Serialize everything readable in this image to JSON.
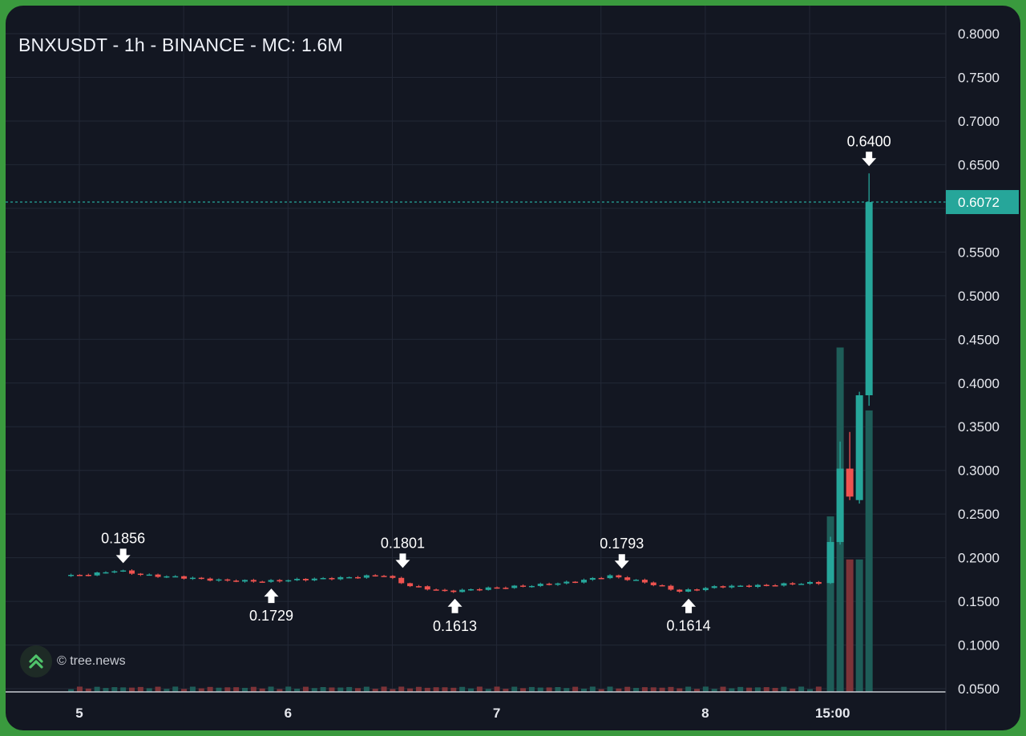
{
  "title": "BNXUSDT - 1h - BINANCE - MC: 1.6M",
  "watermark": {
    "text": "© tree.news",
    "icon": "double-chevron-up-icon"
  },
  "colors": {
    "up": "#26a69a",
    "down": "#ef5350",
    "vol_up": "#1e5d58",
    "vol_down": "#7d3338",
    "grid": "#232836",
    "frame": "#3a9a3e",
    "background": "#131722"
  },
  "chart_data": {
    "type": "candlestick",
    "title": "BNXUSDT - 1h - BINANCE - MC: 1.6M",
    "symbol": "BNXUSDT",
    "interval": "1h",
    "exchange": "BINANCE",
    "market_cap": "1.6M",
    "ylim": [
      0.05,
      0.8
    ],
    "y_ticks": [
      "0.8000",
      "0.7500",
      "0.7000",
      "0.6500",
      "0.6000",
      "0.5500",
      "0.5000",
      "0.4500",
      "0.4000",
      "0.3500",
      "0.3000",
      "0.2500",
      "0.2000",
      "0.1500",
      "0.1000",
      "0.0500"
    ],
    "x_ticks": [
      "5",
      "6",
      "7",
      "8",
      "15:00"
    ],
    "last_price": "0.6072",
    "grid": true,
    "anchors": [
      {
        "x": -0.04,
        "price": 0.179
      },
      {
        "x": 0.1,
        "price": 0.181
      },
      {
        "x": 0.22,
        "price": 0.1856
      },
      {
        "x": 0.35,
        "price": 0.18
      },
      {
        "x": 0.5,
        "price": 0.178
      },
      {
        "x": 0.72,
        "price": 0.174
      },
      {
        "x": 0.93,
        "price": 0.1729
      },
      {
        "x": 1.1,
        "price": 0.175
      },
      {
        "x": 1.3,
        "price": 0.177
      },
      {
        "x": 1.5,
        "price": 0.1801
      },
      {
        "x": 1.62,
        "price": 0.168
      },
      {
        "x": 1.8,
        "price": 0.1613
      },
      {
        "x": 2.0,
        "price": 0.165
      },
      {
        "x": 2.2,
        "price": 0.168
      },
      {
        "x": 2.4,
        "price": 0.172
      },
      {
        "x": 2.58,
        "price": 0.1793
      },
      {
        "x": 2.75,
        "price": 0.172
      },
      {
        "x": 2.92,
        "price": 0.1614
      },
      {
        "x": 3.1,
        "price": 0.167
      },
      {
        "x": 3.3,
        "price": 0.168
      },
      {
        "x": 3.52,
        "price": 0.171
      }
    ],
    "spike": [
      {
        "open": 0.171,
        "high": 0.224,
        "low": 0.17,
        "close": 0.218
      },
      {
        "open": 0.218,
        "high": 0.333,
        "low": 0.215,
        "close": 0.302
      },
      {
        "open": 0.302,
        "high": 0.344,
        "low": 0.266,
        "close": 0.27
      },
      {
        "open": 0.266,
        "high": 0.39,
        "low": 0.262,
        "close": 0.386
      },
      {
        "open": 0.386,
        "high": 0.64,
        "low": 0.374,
        "close": 0.6072
      }
    ],
    "spike_start_x": 3.6,
    "spike_step": 0.0462,
    "volume": {
      "ylim": [
        0,
        0.46
      ],
      "spike": [
        0.265,
        0.52,
        0.2,
        0.2,
        0.425
      ]
    },
    "annotations": [
      {
        "label": "0.1856",
        "type": "high",
        "x": 0.21,
        "price": 0.1856
      },
      {
        "label": "0.1729",
        "type": "low",
        "x": 0.92,
        "price": 0.1729
      },
      {
        "label": "0.1801",
        "type": "high",
        "x": 1.55,
        "price": 0.1801
      },
      {
        "label": "0.1613",
        "type": "low",
        "x": 1.8,
        "price": 0.1613
      },
      {
        "label": "0.1793",
        "type": "high",
        "x": 2.6,
        "price": 0.1793
      },
      {
        "label": "0.1614",
        "type": "low",
        "x": 2.92,
        "price": 0.1614
      },
      {
        "label": "0.6400",
        "type": "high",
        "x": 3.7848,
        "price": 0.64
      }
    ]
  }
}
